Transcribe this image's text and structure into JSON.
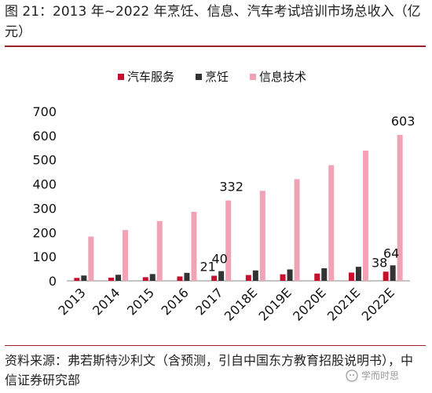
{
  "title": "图 21：2013 年~2022 年烹饪、信息、汽车考试培训市场总收入（亿元）",
  "source": "资料来源：弗若斯特沙利文（含预测，引自中国东方教育招股说明书），中信证券研究部",
  "watermark": "学而时思",
  "colors": {
    "rule": "#9c1f2b"
  },
  "chart_data": {
    "type": "bar",
    "categories": [
      "2013",
      "2014",
      "2015",
      "2016",
      "2017",
      "2018E",
      "2019E",
      "2020E",
      "2021E",
      "2022E"
    ],
    "series": [
      {
        "name": "汽车服务",
        "color": "#c8102e",
        "values": [
          12,
          13,
          15,
          18,
          21,
          24,
          27,
          30,
          34,
          38
        ]
      },
      {
        "name": "烹饪",
        "color": "#333333",
        "values": [
          22,
          25,
          28,
          33,
          40,
          43,
          47,
          52,
          58,
          64
        ]
      },
      {
        "name": "信息技术",
        "color": "#f0a3b5",
        "values": [
          183,
          210,
          247,
          285,
          332,
          372,
          420,
          478,
          538,
          603
        ]
      }
    ],
    "yticks": [
      0,
      100,
      200,
      300,
      400,
      500,
      600,
      700
    ],
    "ylim": [
      0,
      700
    ],
    "data_labels": [
      {
        "series": 0,
        "index": 4,
        "text": "21"
      },
      {
        "series": 1,
        "index": 4,
        "text": "40"
      },
      {
        "series": 2,
        "index": 4,
        "text": "332"
      },
      {
        "series": 0,
        "index": 9,
        "text": "38"
      },
      {
        "series": 1,
        "index": 9,
        "text": "64"
      },
      {
        "series": 2,
        "index": 9,
        "text": "603"
      }
    ],
    "legend_position": "top",
    "grid": false
  }
}
